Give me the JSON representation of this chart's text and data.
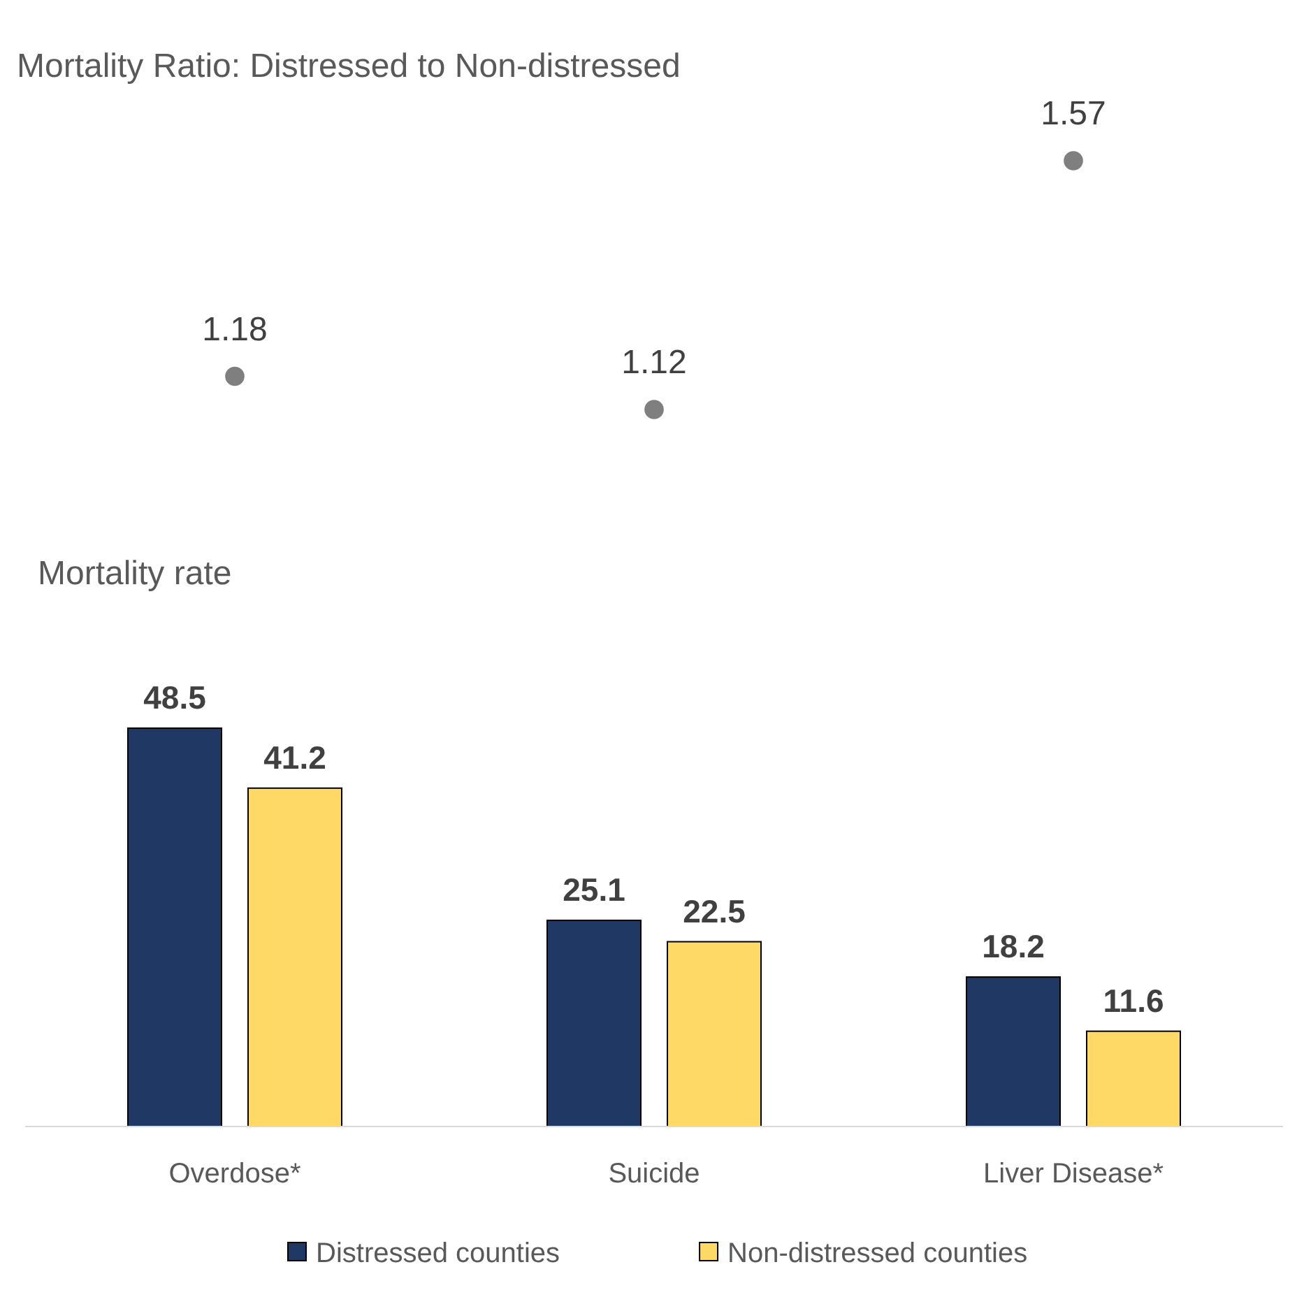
{
  "chart_data": [
    {
      "type": "scatter",
      "title": "Mortality Ratio: Distressed to Non-distressed",
      "categories": [
        "Overdose*",
        "Suicide",
        "Liver Disease*"
      ],
      "values": [
        1.18,
        1.12,
        1.57
      ],
      "color": "#7f7f7f",
      "marker": "circle",
      "data_labels": true,
      "tick_labels": false
    },
    {
      "type": "bar",
      "title": "Mortality rate",
      "categories": [
        "Overdose*",
        "Suicide",
        "Liver Disease*"
      ],
      "series": [
        {
          "name": "Distressed counties",
          "color": "#1f3864",
          "values": [
            48.5,
            25.1,
            18.2
          ]
        },
        {
          "name": "Non-distressed counties",
          "color": "#ffd966",
          "values": [
            41.2,
            22.5,
            11.6
          ]
        }
      ],
      "data_labels": true,
      "legend": "bottom",
      "tick_labels": "x"
    }
  ]
}
